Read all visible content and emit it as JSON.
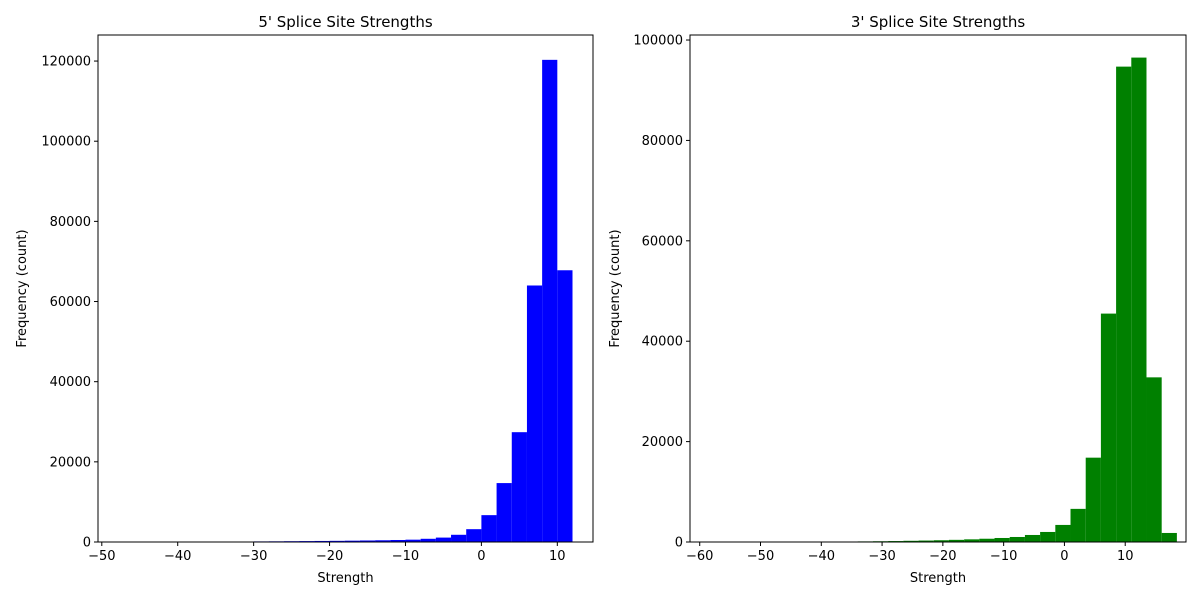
{
  "chart_data": [
    {
      "type": "bar",
      "subtype": "histogram",
      "title": "5' Splice Site Strengths",
      "xlabel": "Strength",
      "ylabel": "Frequency (count)",
      "color": "#0000ff",
      "xlim": [
        -50.5,
        14.7
      ],
      "ylim": [
        0,
        126500
      ],
      "xticks": [
        -50,
        -40,
        -30,
        -20,
        -10,
        0,
        10
      ],
      "xtick_labels": [
        "−50",
        "−40",
        "−30",
        "−20",
        "−10",
        "0",
        "10"
      ],
      "yticks": [
        0,
        20000,
        40000,
        60000,
        80000,
        100000,
        120000
      ],
      "ytick_labels": [
        "0",
        "20000",
        "40000",
        "60000",
        "80000",
        "100000",
        "120000"
      ],
      "grid": false,
      "bins": [
        {
          "x0": -48.0,
          "x1": -46.0,
          "value": 10
        },
        {
          "x0": -46.0,
          "x1": -44.0,
          "value": 10
        },
        {
          "x0": -44.0,
          "x1": -42.0,
          "value": 20
        },
        {
          "x0": -42.0,
          "x1": -40.0,
          "value": 20
        },
        {
          "x0": -40.0,
          "x1": -38.0,
          "value": 30
        },
        {
          "x0": -38.0,
          "x1": -36.0,
          "value": 60
        },
        {
          "x0": -36.0,
          "x1": -34.0,
          "value": 80
        },
        {
          "x0": -34.0,
          "x1": -32.0,
          "value": 100
        },
        {
          "x0": -32.0,
          "x1": -30.0,
          "value": 120
        },
        {
          "x0": -30.0,
          "x1": -28.0,
          "value": 150
        },
        {
          "x0": -28.0,
          "x1": -26.0,
          "value": 170
        },
        {
          "x0": -26.0,
          "x1": -24.0,
          "value": 200
        },
        {
          "x0": -24.0,
          "x1": -22.0,
          "value": 230
        },
        {
          "x0": -22.0,
          "x1": -20.0,
          "value": 260
        },
        {
          "x0": -20.0,
          "x1": -18.0,
          "value": 290
        },
        {
          "x0": -18.0,
          "x1": -16.0,
          "value": 330
        },
        {
          "x0": -16.0,
          "x1": -14.0,
          "value": 380
        },
        {
          "x0": -14.0,
          "x1": -12.0,
          "value": 430
        },
        {
          "x0": -12.0,
          "x1": -10.0,
          "value": 500
        },
        {
          "x0": -10.0,
          "x1": -8.0,
          "value": 580
        },
        {
          "x0": -8.0,
          "x1": -6.0,
          "value": 800
        },
        {
          "x0": -6.0,
          "x1": -4.0,
          "value": 1100
        },
        {
          "x0": -4.0,
          "x1": -2.0,
          "value": 1800
        },
        {
          "x0": -2.0,
          "x1": 0.0,
          "value": 3200
        },
        {
          "x0": 0.0,
          "x1": 2.0,
          "value": 6700
        },
        {
          "x0": 2.0,
          "x1": 4.0,
          "value": 14700
        },
        {
          "x0": 4.0,
          "x1": 6.0,
          "value": 27400
        },
        {
          "x0": 6.0,
          "x1": 8.0,
          "value": 64000
        },
        {
          "x0": 8.0,
          "x1": 10.0,
          "value": 120300
        },
        {
          "x0": 10.0,
          "x1": 12.0,
          "value": 67800
        }
      ]
    },
    {
      "type": "bar",
      "subtype": "histogram",
      "title": "3' Splice Site Strengths",
      "xlabel": "Strength",
      "ylabel": "Frequency (count)",
      "color": "#008000",
      "xlim": [
        -61.6,
        20.0
      ],
      "ylim": [
        0,
        101000
      ],
      "xticks": [
        -60,
        -50,
        -40,
        -30,
        -20,
        -10,
        0,
        10
      ],
      "xtick_labels": [
        "−60",
        "−50",
        "−40",
        "−30",
        "−20",
        "−10",
        "0",
        "10"
      ],
      "yticks": [
        0,
        20000,
        40000,
        60000,
        80000,
        100000
      ],
      "ytick_labels": [
        "0",
        "20000",
        "40000",
        "60000",
        "80000",
        "100000"
      ],
      "grid": false,
      "bins": [
        {
          "x0": -59.0,
          "x1": -56.5,
          "value": 10
        },
        {
          "x0": -56.5,
          "x1": -54.0,
          "value": 10
        },
        {
          "x0": -54.0,
          "x1": -51.5,
          "value": 10
        },
        {
          "x0": -51.5,
          "x1": -49.0,
          "value": 20
        },
        {
          "x0": -49.0,
          "x1": -46.5,
          "value": 20
        },
        {
          "x0": -46.5,
          "x1": -44.0,
          "value": 30
        },
        {
          "x0": -44.0,
          "x1": -41.5,
          "value": 30
        },
        {
          "x0": -41.5,
          "x1": -39.0,
          "value": 40
        },
        {
          "x0": -39.0,
          "x1": -36.5,
          "value": 60
        },
        {
          "x0": -36.5,
          "x1": -34.0,
          "value": 90
        },
        {
          "x0": -34.0,
          "x1": -31.5,
          "value": 120
        },
        {
          "x0": -31.5,
          "x1": -29.0,
          "value": 150
        },
        {
          "x0": -29.0,
          "x1": -26.5,
          "value": 190
        },
        {
          "x0": -26.5,
          "x1": -24.0,
          "value": 240
        },
        {
          "x0": -24.0,
          "x1": -21.5,
          "value": 290
        },
        {
          "x0": -21.5,
          "x1": -19.0,
          "value": 350
        },
        {
          "x0": -19.0,
          "x1": -16.5,
          "value": 430
        },
        {
          "x0": -16.5,
          "x1": -14.0,
          "value": 530
        },
        {
          "x0": -14.0,
          "x1": -11.5,
          "value": 650
        },
        {
          "x0": -11.5,
          "x1": -9.0,
          "value": 800
        },
        {
          "x0": -9.0,
          "x1": -6.5,
          "value": 1000
        },
        {
          "x0": -6.5,
          "x1": -4.0,
          "value": 1400
        },
        {
          "x0": -4.0,
          "x1": -1.5,
          "value": 2000
        },
        {
          "x0": -1.5,
          "x1": 1.0,
          "value": 3400
        },
        {
          "x0": 1.0,
          "x1": 3.5,
          "value": 6600
        },
        {
          "x0": 3.5,
          "x1": 6.0,
          "value": 16800
        },
        {
          "x0": 6.0,
          "x1": 8.5,
          "value": 45500
        },
        {
          "x0": 8.5,
          "x1": 11.0,
          "value": 94700
        },
        {
          "x0": 11.0,
          "x1": 13.5,
          "value": 96500
        },
        {
          "x0": 13.5,
          "x1": 16.0,
          "value": 32800
        },
        {
          "x0": 16.0,
          "x1": 18.5,
          "value": 1800
        }
      ]
    }
  ]
}
